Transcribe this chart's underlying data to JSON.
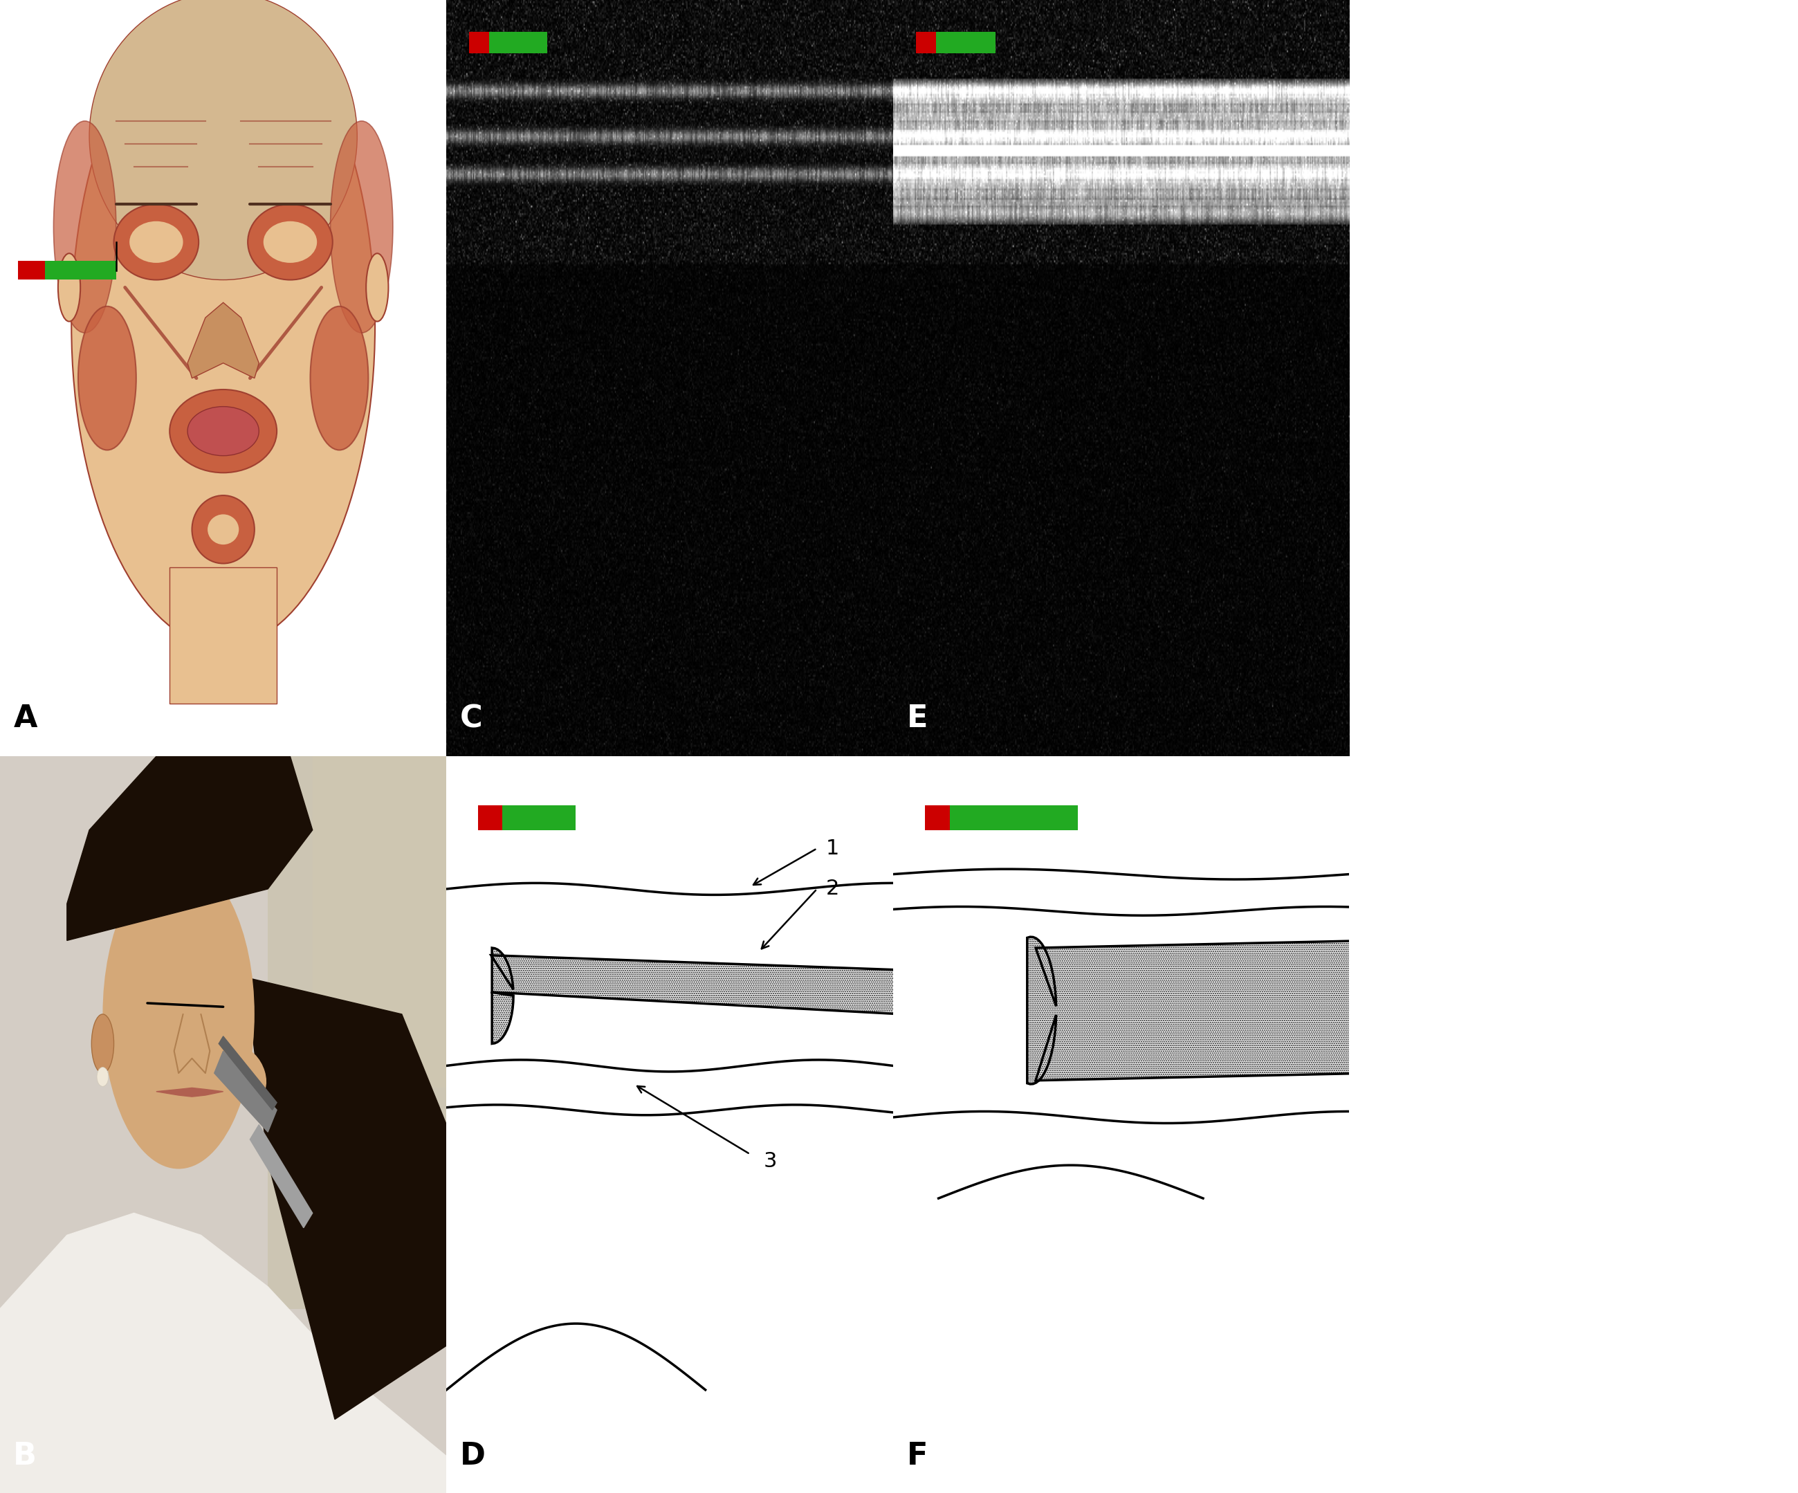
{
  "bg_color": "#ffffff",
  "panel_labels": [
    "A",
    "B",
    "C",
    "D",
    "E",
    "F"
  ],
  "label_fontsize": 32,
  "label_color_light": "#ffffff",
  "label_color_dark": "#000000",
  "red_color": "#cc0000",
  "green_color": "#22aa22",
  "line_width": 2.5,
  "annotation_fontsize": 22,
  "border_lw": 2,
  "col_splits": [
    0.2483,
    0.4966,
    0.7503
  ],
  "row_split": 0.4934,
  "face_skin_color": "#e8c090",
  "face_muscle_color": "#c86040",
  "face_muscle_dark": "#a04030"
}
